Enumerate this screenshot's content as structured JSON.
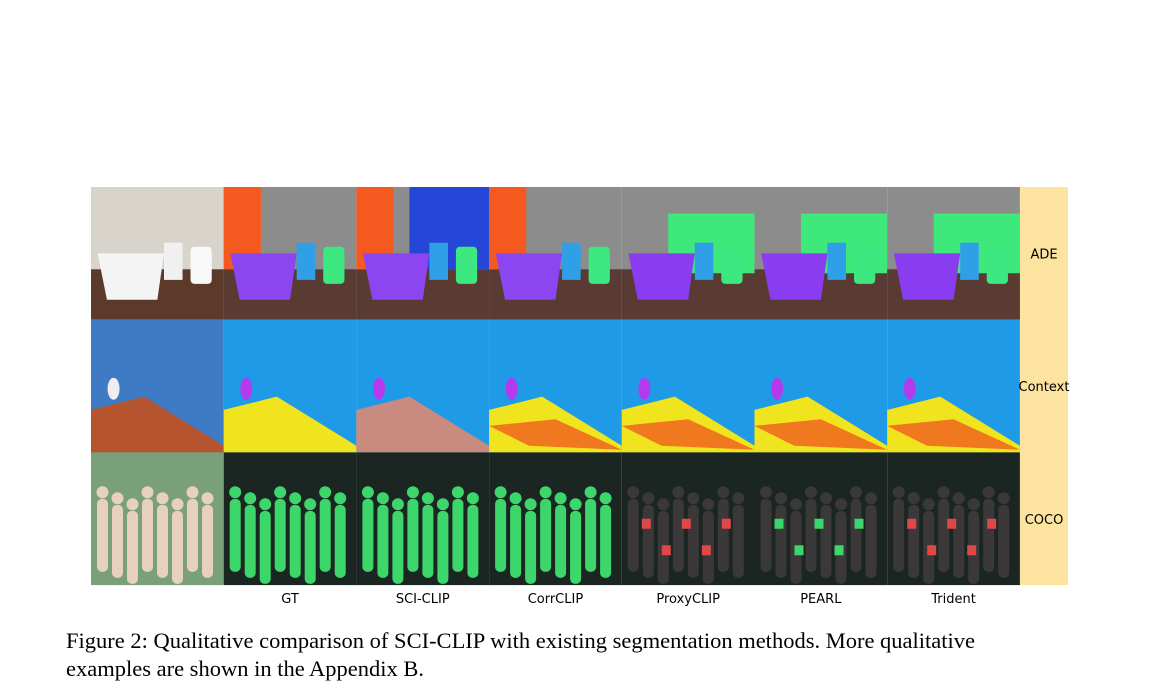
{
  "figure": {
    "columns": [
      "GT",
      "SCI-CLIP",
      "CorrCLIP",
      "ProxyCLIP",
      "PEARL",
      "Trident"
    ],
    "rows": [
      "ADE",
      "Context",
      "COCO"
    ],
    "caption": [
      "Figure 2: Qualitative comparison of SCI-CLIP with existing segmentation methods. More qualitative",
      "examples are shown in the Appendix B."
    ]
  }
}
